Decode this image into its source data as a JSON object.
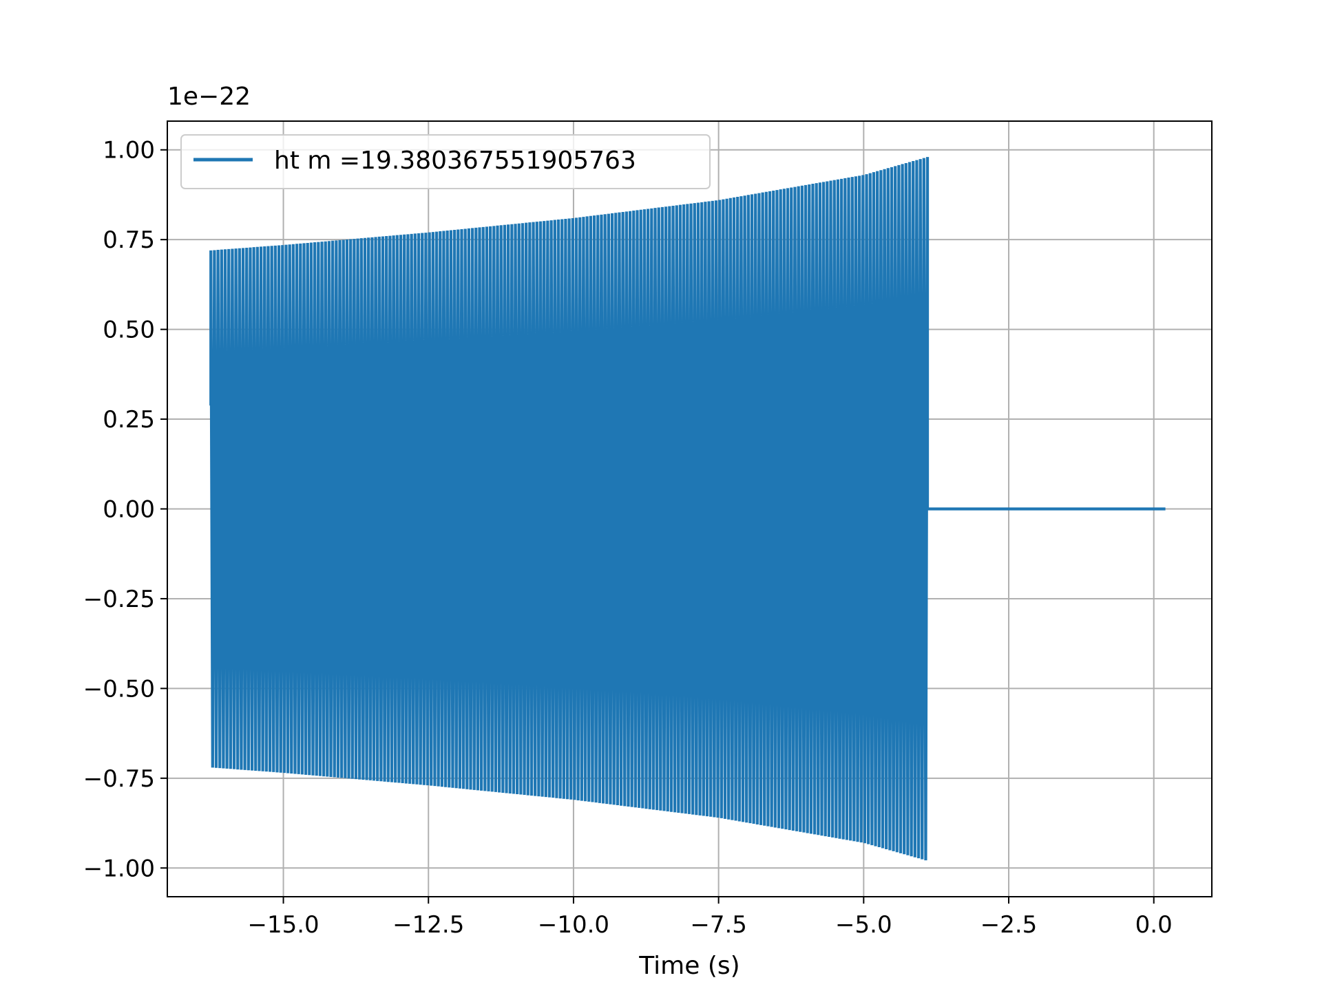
{
  "chart_data": {
    "type": "line",
    "title": "",
    "xlabel": "Time (s)",
    "ylabel": "",
    "y_offset_label": "1e−22",
    "xlim": [
      -17.0,
      1.0
    ],
    "ylim": [
      -1.08,
      1.08
    ],
    "grid": true,
    "legend_position": "upper-left",
    "x_ticks": [
      -15.0,
      -12.5,
      -10.0,
      -7.5,
      -5.0,
      -2.5,
      0.0
    ],
    "x_tick_labels": [
      "−15.0",
      "−12.5",
      "−10.0",
      "−7.5",
      "−5.0",
      "−2.5",
      "0.0"
    ],
    "y_ticks": [
      1.0,
      0.75,
      0.5,
      0.25,
      0.0,
      -0.25,
      -0.5,
      -0.75,
      -1.0
    ],
    "y_tick_labels": [
      "1.00",
      "0.75",
      "0.50",
      "0.25",
      "0.00",
      "−0.25",
      "−0.50",
      "−0.75",
      "−1.00"
    ],
    "series": [
      {
        "name": "ht m =19.380367551905763",
        "color": "#1f77b4",
        "signal_start": -16.25,
        "signal_end": -3.9,
        "data_end": 0.2,
        "amplitude_start": 0.72,
        "amplitude_end": 0.98,
        "amplitude_envelope": [
          [
            -16.25,
            0.72
          ],
          [
            -15.0,
            0.735
          ],
          [
            -12.5,
            0.77
          ],
          [
            -10.0,
            0.81
          ],
          [
            -7.5,
            0.86
          ],
          [
            -5.0,
            0.93
          ],
          [
            -3.9,
            0.98
          ]
        ],
        "cycles_visible": 200
      }
    ]
  }
}
